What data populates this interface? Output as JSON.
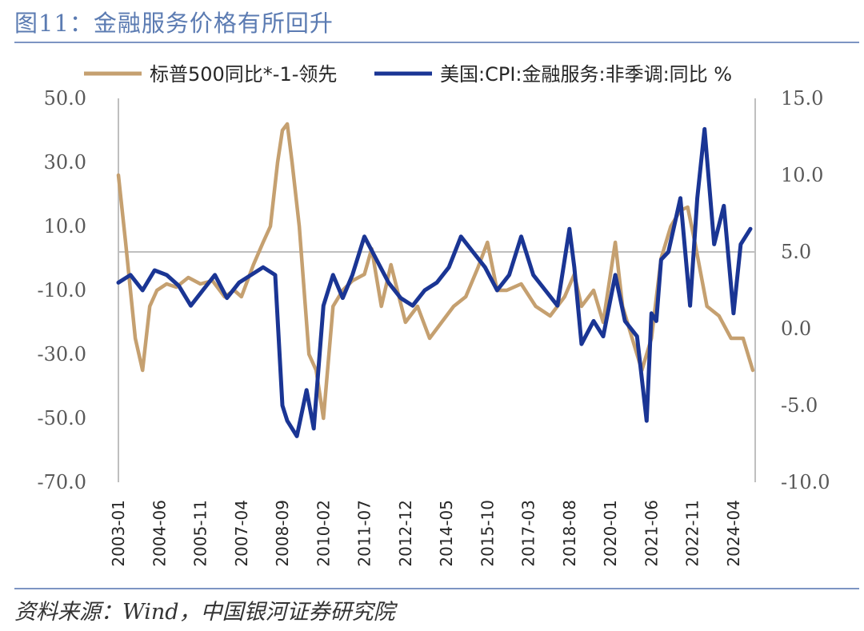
{
  "header": {
    "title": "图11：金融服务价格有所回升"
  },
  "footer": {
    "source": "资料来源：Wind，中国银河证券研究院"
  },
  "chart_data": {
    "type": "line",
    "legend": [
      "标普500同比*-1-领先",
      "美国:CPI:金融服务:非季调:同比 %"
    ],
    "legend_position": "top",
    "y_left": {
      "ticks": [
        "50.0",
        "30.0",
        "10.0",
        "-10.0",
        "-30.0",
        "-50.0",
        "-70.0"
      ],
      "range": [
        -70,
        50
      ]
    },
    "y_right": {
      "ticks": [
        "15.0",
        "10.0",
        "5.0",
        "0.0",
        "-5.0",
        "-10.0"
      ],
      "range": [
        -10,
        15
      ]
    },
    "x_ticks": [
      "2003-01",
      "2004-06",
      "2005-11",
      "2007-04",
      "2008-09",
      "2010-02",
      "2011-07",
      "2012-12",
      "2014-05",
      "2015-10",
      "2017-03",
      "2018-08",
      "2020-01",
      "2021-06",
      "2022-11",
      "2024-04"
    ],
    "x_range": [
      "2003-01",
      "2025-01"
    ],
    "grid": false,
    "reference_line": {
      "axis": "right",
      "value": 5.0
    },
    "series": [
      {
        "name": "标普500同比*-1-领先",
        "axis": "left",
        "color": "#c5a070",
        "x": [
          "2003-01",
          "2003-04",
          "2003-08",
          "2003-11",
          "2004-02",
          "2004-05",
          "2004-09",
          "2005-01",
          "2005-06",
          "2005-11",
          "2006-04",
          "2006-09",
          "2007-01",
          "2007-04",
          "2007-09",
          "2008-01",
          "2008-04",
          "2008-07",
          "2008-09",
          "2008-11",
          "2009-01",
          "2009-04",
          "2009-08",
          "2009-11",
          "2010-02",
          "2010-06",
          "2010-10",
          "2011-02",
          "2011-07",
          "2011-10",
          "2012-02",
          "2012-06",
          "2012-12",
          "2013-05",
          "2013-10",
          "2014-03",
          "2014-08",
          "2015-01",
          "2015-06",
          "2015-10",
          "2016-02",
          "2016-06",
          "2016-12",
          "2017-06",
          "2017-12",
          "2018-06",
          "2018-10",
          "2019-01",
          "2019-06",
          "2019-10",
          "2020-03",
          "2020-06",
          "2020-10",
          "2021-02",
          "2021-06",
          "2021-10",
          "2022-02",
          "2022-06",
          "2022-09",
          "2022-12",
          "2023-05",
          "2023-10",
          "2024-03",
          "2024-08",
          "2024-12"
        ],
        "values": [
          26,
          5,
          -25,
          -35,
          -15,
          -10,
          -8,
          -9,
          -6,
          -8,
          -7,
          -12,
          -10,
          -12,
          -2,
          5,
          10,
          30,
          40,
          42,
          30,
          10,
          -30,
          -35,
          -50,
          -15,
          -10,
          -7,
          -5,
          3,
          -15,
          -2,
          -20,
          -15,
          -25,
          -20,
          -15,
          -12,
          -3,
          5,
          -10,
          -10,
          -8,
          -15,
          -18,
          -12,
          -5,
          -15,
          -10,
          -20,
          5,
          -15,
          -25,
          -35,
          -25,
          0,
          10,
          15,
          16,
          5,
          -15,
          -18,
          -25,
          -25,
          -35
        ]
      },
      {
        "name": "美国:CPI:金融服务:非季调:同比 %",
        "axis": "right",
        "color": "#1a3594",
        "x": [
          "2003-01",
          "2003-06",
          "2003-11",
          "2004-04",
          "2004-09",
          "2005-02",
          "2005-07",
          "2005-12",
          "2006-05",
          "2006-10",
          "2007-03",
          "2007-08",
          "2008-01",
          "2008-06",
          "2008-09",
          "2008-11",
          "2009-03",
          "2009-07",
          "2009-10",
          "2010-02",
          "2010-06",
          "2010-10",
          "2011-02",
          "2011-07",
          "2011-12",
          "2012-05",
          "2012-10",
          "2013-03",
          "2013-08",
          "2014-01",
          "2014-06",
          "2014-11",
          "2015-04",
          "2015-09",
          "2016-02",
          "2016-07",
          "2016-12",
          "2017-05",
          "2017-10",
          "2018-03",
          "2018-08",
          "2018-10",
          "2019-01",
          "2019-06",
          "2019-10",
          "2020-03",
          "2020-07",
          "2020-12",
          "2021-04",
          "2021-06",
          "2021-08",
          "2021-10",
          "2022-01",
          "2022-06",
          "2022-10",
          "2023-01",
          "2023-04",
          "2023-08",
          "2023-12",
          "2024-04",
          "2024-07",
          "2024-11"
        ],
        "values": [
          3.0,
          3.5,
          2.5,
          3.8,
          3.5,
          2.8,
          1.5,
          2.5,
          3.5,
          2.0,
          3.0,
          3.5,
          4.0,
          3.5,
          -5.0,
          -6.0,
          -7.0,
          -4.0,
          -6.5,
          1.5,
          3.5,
          2.0,
          3.5,
          6.0,
          4.5,
          3.0,
          2.0,
          1.5,
          2.5,
          3.0,
          4.0,
          6.0,
          5.0,
          4.0,
          2.5,
          3.5,
          6.0,
          3.5,
          2.5,
          1.5,
          6.5,
          4.0,
          -1.0,
          0.5,
          -0.5,
          3.5,
          0.5,
          -0.5,
          -6.0,
          1.0,
          0.5,
          4.5,
          5.0,
          8.5,
          1.5,
          8.5,
          13.0,
          5.5,
          8.0,
          1.0,
          5.5,
          6.5
        ]
      }
    ]
  }
}
